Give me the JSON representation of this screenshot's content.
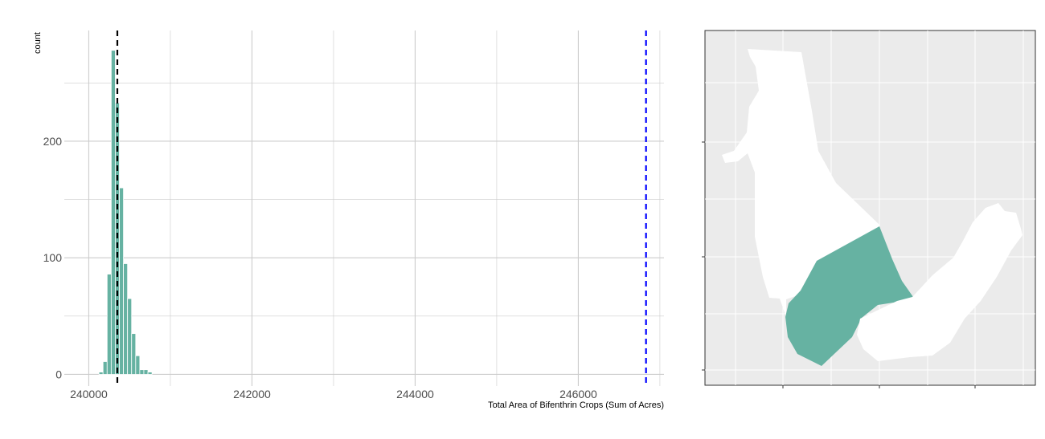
{
  "chart_data": [
    {
      "type": "bar",
      "subtype": "histogram",
      "xlabel": "Total Area of Bifenthrin Crops (Sum of Acres)",
      "ylabel": "count",
      "xlim": [
        239700,
        247050
      ],
      "ylim": [
        -10,
        295
      ],
      "x_ticks": [
        240000,
        242000,
        244000,
        246000
      ],
      "x_tick_labels": [
        "240000",
        "242000",
        "244000",
        "246000"
      ],
      "y_ticks": [
        0,
        100,
        200
      ],
      "y_tick_labels": [
        "0",
        "100",
        "200"
      ],
      "bin_width": 50,
      "bins": [
        {
          "x": 240150,
          "count": 2
        },
        {
          "x": 240200,
          "count": 11
        },
        {
          "x": 240250,
          "count": 86
        },
        {
          "x": 240300,
          "count": 278
        },
        {
          "x": 240350,
          "count": 233
        },
        {
          "x": 240400,
          "count": 160
        },
        {
          "x": 240450,
          "count": 95
        },
        {
          "x": 240500,
          "count": 65
        },
        {
          "x": 240550,
          "count": 35
        },
        {
          "x": 240600,
          "count": 16
        },
        {
          "x": 240650,
          "count": 4
        },
        {
          "x": 240700,
          "count": 4
        },
        {
          "x": 240750,
          "count": 2
        }
      ],
      "reference_lines": [
        {
          "x": 240350,
          "color": "#000000",
          "style": "dashed"
        },
        {
          "x": 246830,
          "color": "#0000ff",
          "style": "dashed"
        }
      ],
      "bar_color": "#66b2a2",
      "grid": true,
      "legend": "none"
    },
    {
      "type": "map",
      "fill_highlight": "#66b2a2",
      "fill_other": "#ffffff",
      "panel_background": "#ebebeb",
      "regions": [
        "highlighted-region",
        "north-region",
        "east-region"
      ]
    }
  ]
}
